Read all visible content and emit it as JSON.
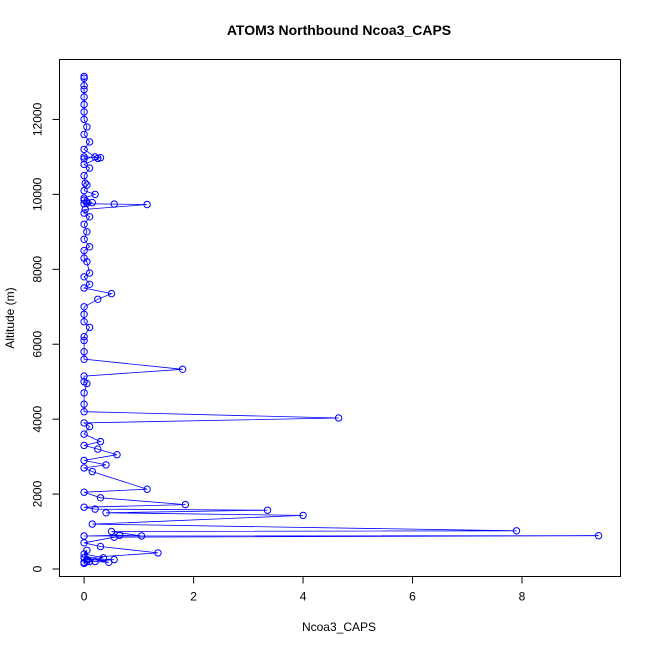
{
  "chart_data": {
    "type": "line",
    "title": "ATOM3 Northbound Ncoa3_CAPS",
    "xlabel": "Ncoa3_CAPS",
    "ylabel": "Altitude (m)",
    "xlim": [
      -0.45,
      9.8
    ],
    "ylim": [
      -200,
      13600
    ],
    "xticks": [
      0,
      2,
      4,
      6,
      8
    ],
    "yticks": [
      0,
      2000,
      4000,
      6000,
      8000,
      10000,
      12000
    ],
    "markers": "open circles",
    "grid": false,
    "legend": "none",
    "series": [
      {
        "x": [
          0,
          0,
          0,
          0,
          0,
          0,
          0,
          0,
          0.05,
          0,
          0.1,
          0,
          0.2,
          0,
          0,
          0.3,
          0.25,
          0,
          0.1,
          0,
          0.02,
          0.05,
          0,
          0.2,
          0,
          0,
          0.05,
          0.15,
          0.05,
          0,
          0.55,
          1.15,
          0.02,
          0,
          0.1,
          0,
          0.05,
          0,
          0.1,
          0,
          0,
          0.05,
          0.1,
          0,
          0.1,
          0,
          0.5,
          0.25,
          0,
          0,
          0,
          0.1,
          0,
          0,
          0,
          0,
          1.8,
          0,
          0,
          0.05,
          0,
          0,
          0,
          4.65,
          0,
          0.1,
          0,
          0.3,
          0,
          0.25,
          0.6,
          0,
          0.4,
          0,
          0.15,
          1.15,
          0,
          0.3,
          1.85,
          0,
          0.2,
          3.35,
          0.4,
          4.0,
          0.15,
          7.9,
          0.5,
          1.05,
          0.65,
          0,
          9.4,
          0.55,
          0,
          0.3,
          1.35,
          0,
          0.45,
          0.2,
          0.05,
          0.55,
          0.1,
          0,
          0.35,
          0,
          0.05,
          0,
          0.05,
          0
        ],
        "y": [
          13150,
          13100,
          12900,
          12800,
          12600,
          12400,
          12200,
          12000,
          11800,
          11600,
          11400,
          11200,
          11000,
          10950,
          11000,
          10980,
          10960,
          10800,
          10700,
          10500,
          10300,
          10250,
          10100,
          10000,
          9900,
          9850,
          9800,
          9780,
          9760,
          9750,
          9740,
          9730,
          9600,
          9500,
          9400,
          9200,
          9000,
          8800,
          8600,
          8500,
          8300,
          8200,
          7900,
          7800,
          7600,
          7500,
          7350,
          7200,
          7000,
          6800,
          6600,
          6450,
          6200,
          6100,
          5800,
          5600,
          5330,
          5150,
          5000,
          4950,
          4700,
          4400,
          4200,
          4030,
          3900,
          3800,
          3600,
          3400,
          3300,
          3200,
          3050,
          2900,
          2780,
          2700,
          2600,
          2130,
          2050,
          1900,
          1720,
          1650,
          1600,
          1570,
          1500,
          1430,
          1200,
          1020,
          1000,
          880,
          900,
          880,
          890,
          850,
          700,
          600,
          430,
          300,
          180,
          200,
          250,
          250,
          200,
          180,
          300,
          400,
          500,
          300,
          200,
          150
        ]
      }
    ]
  }
}
